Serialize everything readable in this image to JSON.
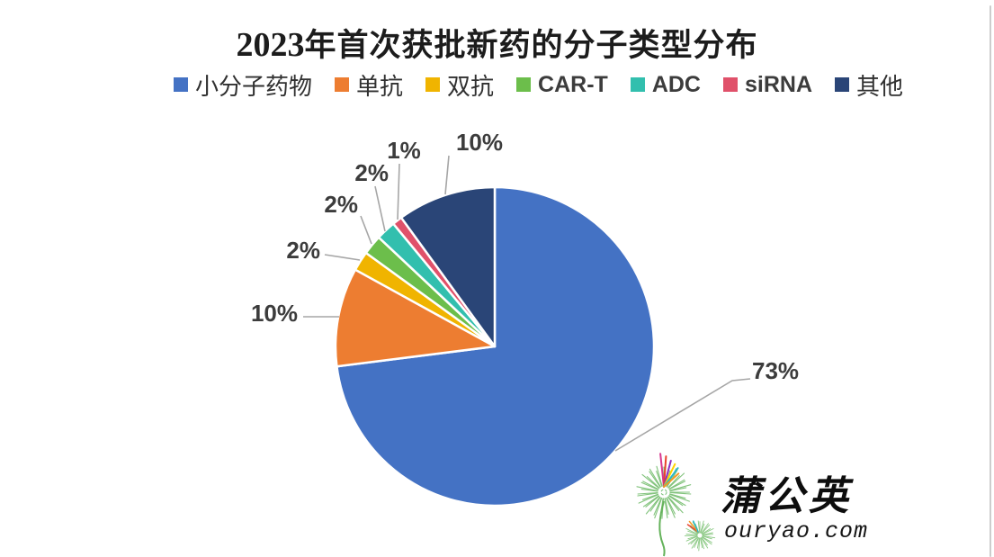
{
  "figure": {
    "background": "#ffffff",
    "right_edge_color": "#cdcdcd"
  },
  "title": {
    "year": "2023",
    "text": "年首次获批新药的分子类型分布"
  },
  "legend": {
    "items": [
      {
        "key": "small-molecule",
        "label": "小分子药物",
        "color": "#4472C4",
        "latin": false
      },
      {
        "key": "mab",
        "label": "单抗",
        "color": "#ED7D31",
        "latin": false
      },
      {
        "key": "bispecific",
        "label": "双抗",
        "color": "#F0B400",
        "latin": false
      },
      {
        "key": "car-t",
        "label": "CAR-T",
        "color": "#6CBE4B",
        "latin": true
      },
      {
        "key": "adc",
        "label": "ADC",
        "color": "#32BFAE",
        "latin": true
      },
      {
        "key": "sirna",
        "label": "siRNA",
        "color": "#E0516A",
        "latin": true
      },
      {
        "key": "other",
        "label": "其他",
        "color": "#2A4577",
        "latin": false
      }
    ]
  },
  "chart_data": {
    "type": "pie",
    "title": "2023年首次获批新药的分子类型分布",
    "categories": [
      "小分子药物",
      "单抗",
      "双抗",
      "CAR-T",
      "ADC",
      "siRNA",
      "其他"
    ],
    "values": [
      73,
      10,
      2,
      2,
      2,
      1,
      10
    ],
    "unit": "%",
    "data_labels": [
      "73%",
      "10%",
      "2%",
      "2%",
      "2%",
      "1%",
      "10%"
    ],
    "colors": [
      "#4472C4",
      "#ED7D31",
      "#F0B400",
      "#6CBE4B",
      "#32BFAE",
      "#E0516A",
      "#2A4577"
    ],
    "start_angle_deg": 0,
    "direction": "clockwise",
    "legend_position": "top",
    "slice_border_color": "#ffffff",
    "leader_line_color": "#a6a6a6",
    "label_color": "#3c3c3c"
  },
  "watermark": {
    "name": "蒲公英",
    "site": "ouryao.com"
  }
}
